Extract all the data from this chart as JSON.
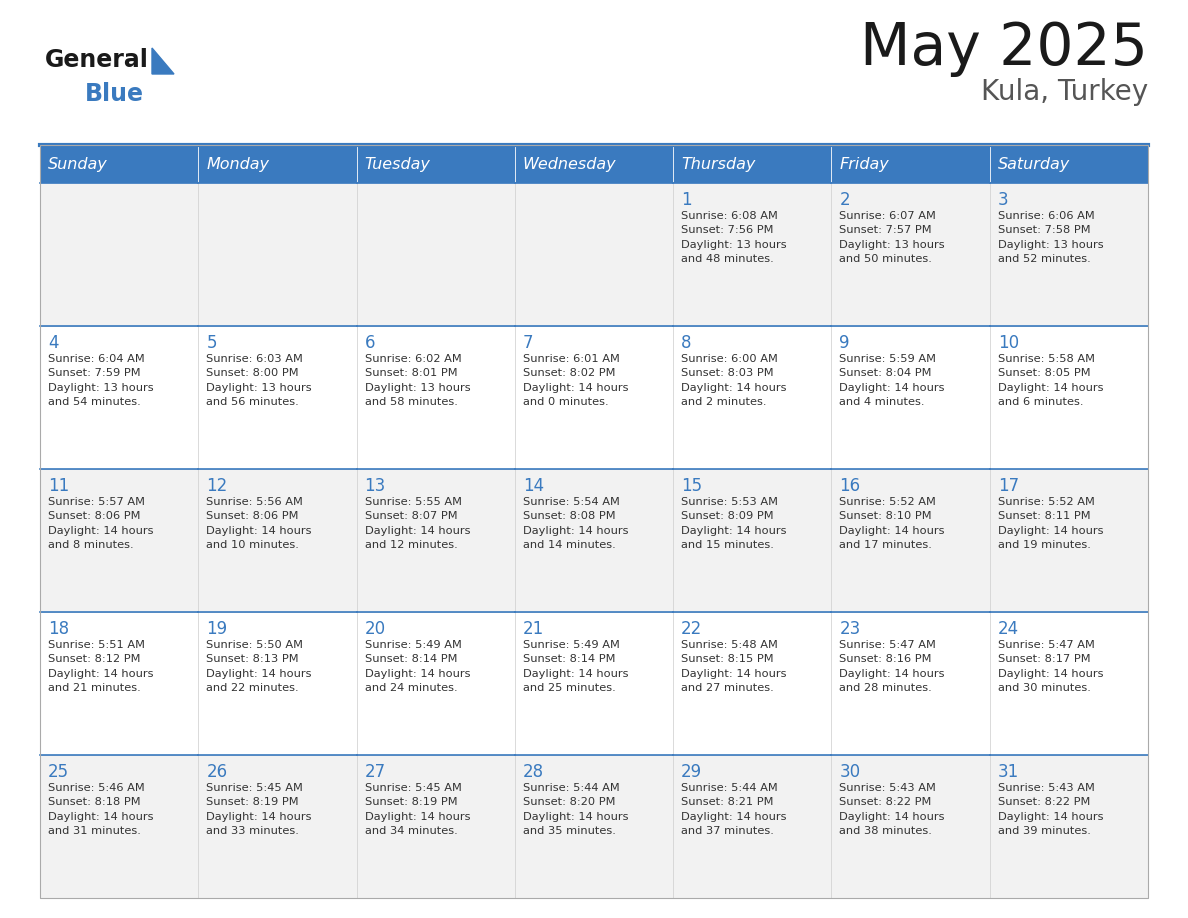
{
  "title": "May 2025",
  "subtitle": "Kula, Turkey",
  "days_of_week": [
    "Sunday",
    "Monday",
    "Tuesday",
    "Wednesday",
    "Thursday",
    "Friday",
    "Saturday"
  ],
  "header_bg": "#3a7abf",
  "header_text_color": "#FFFFFF",
  "cell_bg_even": "#f2f2f2",
  "cell_bg_odd": "#ffffff",
  "cell_border_color": "#3a7abf",
  "cell_text_color": "#333333",
  "day_num_color": "#3a7abf",
  "title_color": "#1A1A1A",
  "subtitle_color": "#555555",
  "logo_general_color": "#1A1A1A",
  "logo_blue_color": "#3a7abf",
  "logo_triangle_color": "#3a7abf",
  "weeks": [
    [
      {
        "day": null,
        "text": ""
      },
      {
        "day": null,
        "text": ""
      },
      {
        "day": null,
        "text": ""
      },
      {
        "day": null,
        "text": ""
      },
      {
        "day": 1,
        "text": "Sunrise: 6:08 AM\nSunset: 7:56 PM\nDaylight: 13 hours\nand 48 minutes."
      },
      {
        "day": 2,
        "text": "Sunrise: 6:07 AM\nSunset: 7:57 PM\nDaylight: 13 hours\nand 50 minutes."
      },
      {
        "day": 3,
        "text": "Sunrise: 6:06 AM\nSunset: 7:58 PM\nDaylight: 13 hours\nand 52 minutes."
      }
    ],
    [
      {
        "day": 4,
        "text": "Sunrise: 6:04 AM\nSunset: 7:59 PM\nDaylight: 13 hours\nand 54 minutes."
      },
      {
        "day": 5,
        "text": "Sunrise: 6:03 AM\nSunset: 8:00 PM\nDaylight: 13 hours\nand 56 minutes."
      },
      {
        "day": 6,
        "text": "Sunrise: 6:02 AM\nSunset: 8:01 PM\nDaylight: 13 hours\nand 58 minutes."
      },
      {
        "day": 7,
        "text": "Sunrise: 6:01 AM\nSunset: 8:02 PM\nDaylight: 14 hours\nand 0 minutes."
      },
      {
        "day": 8,
        "text": "Sunrise: 6:00 AM\nSunset: 8:03 PM\nDaylight: 14 hours\nand 2 minutes."
      },
      {
        "day": 9,
        "text": "Sunrise: 5:59 AM\nSunset: 8:04 PM\nDaylight: 14 hours\nand 4 minutes."
      },
      {
        "day": 10,
        "text": "Sunrise: 5:58 AM\nSunset: 8:05 PM\nDaylight: 14 hours\nand 6 minutes."
      }
    ],
    [
      {
        "day": 11,
        "text": "Sunrise: 5:57 AM\nSunset: 8:06 PM\nDaylight: 14 hours\nand 8 minutes."
      },
      {
        "day": 12,
        "text": "Sunrise: 5:56 AM\nSunset: 8:06 PM\nDaylight: 14 hours\nand 10 minutes."
      },
      {
        "day": 13,
        "text": "Sunrise: 5:55 AM\nSunset: 8:07 PM\nDaylight: 14 hours\nand 12 minutes."
      },
      {
        "day": 14,
        "text": "Sunrise: 5:54 AM\nSunset: 8:08 PM\nDaylight: 14 hours\nand 14 minutes."
      },
      {
        "day": 15,
        "text": "Sunrise: 5:53 AM\nSunset: 8:09 PM\nDaylight: 14 hours\nand 15 minutes."
      },
      {
        "day": 16,
        "text": "Sunrise: 5:52 AM\nSunset: 8:10 PM\nDaylight: 14 hours\nand 17 minutes."
      },
      {
        "day": 17,
        "text": "Sunrise: 5:52 AM\nSunset: 8:11 PM\nDaylight: 14 hours\nand 19 minutes."
      }
    ],
    [
      {
        "day": 18,
        "text": "Sunrise: 5:51 AM\nSunset: 8:12 PM\nDaylight: 14 hours\nand 21 minutes."
      },
      {
        "day": 19,
        "text": "Sunrise: 5:50 AM\nSunset: 8:13 PM\nDaylight: 14 hours\nand 22 minutes."
      },
      {
        "day": 20,
        "text": "Sunrise: 5:49 AM\nSunset: 8:14 PM\nDaylight: 14 hours\nand 24 minutes."
      },
      {
        "day": 21,
        "text": "Sunrise: 5:49 AM\nSunset: 8:14 PM\nDaylight: 14 hours\nand 25 minutes."
      },
      {
        "day": 22,
        "text": "Sunrise: 5:48 AM\nSunset: 8:15 PM\nDaylight: 14 hours\nand 27 minutes."
      },
      {
        "day": 23,
        "text": "Sunrise: 5:47 AM\nSunset: 8:16 PM\nDaylight: 14 hours\nand 28 minutes."
      },
      {
        "day": 24,
        "text": "Sunrise: 5:47 AM\nSunset: 8:17 PM\nDaylight: 14 hours\nand 30 minutes."
      }
    ],
    [
      {
        "day": 25,
        "text": "Sunrise: 5:46 AM\nSunset: 8:18 PM\nDaylight: 14 hours\nand 31 minutes."
      },
      {
        "day": 26,
        "text": "Sunrise: 5:45 AM\nSunset: 8:19 PM\nDaylight: 14 hours\nand 33 minutes."
      },
      {
        "day": 27,
        "text": "Sunrise: 5:45 AM\nSunset: 8:19 PM\nDaylight: 14 hours\nand 34 minutes."
      },
      {
        "day": 28,
        "text": "Sunrise: 5:44 AM\nSunset: 8:20 PM\nDaylight: 14 hours\nand 35 minutes."
      },
      {
        "day": 29,
        "text": "Sunrise: 5:44 AM\nSunset: 8:21 PM\nDaylight: 14 hours\nand 37 minutes."
      },
      {
        "day": 30,
        "text": "Sunrise: 5:43 AM\nSunset: 8:22 PM\nDaylight: 14 hours\nand 38 minutes."
      },
      {
        "day": 31,
        "text": "Sunrise: 5:43 AM\nSunset: 8:22 PM\nDaylight: 14 hours\nand 39 minutes."
      }
    ]
  ]
}
